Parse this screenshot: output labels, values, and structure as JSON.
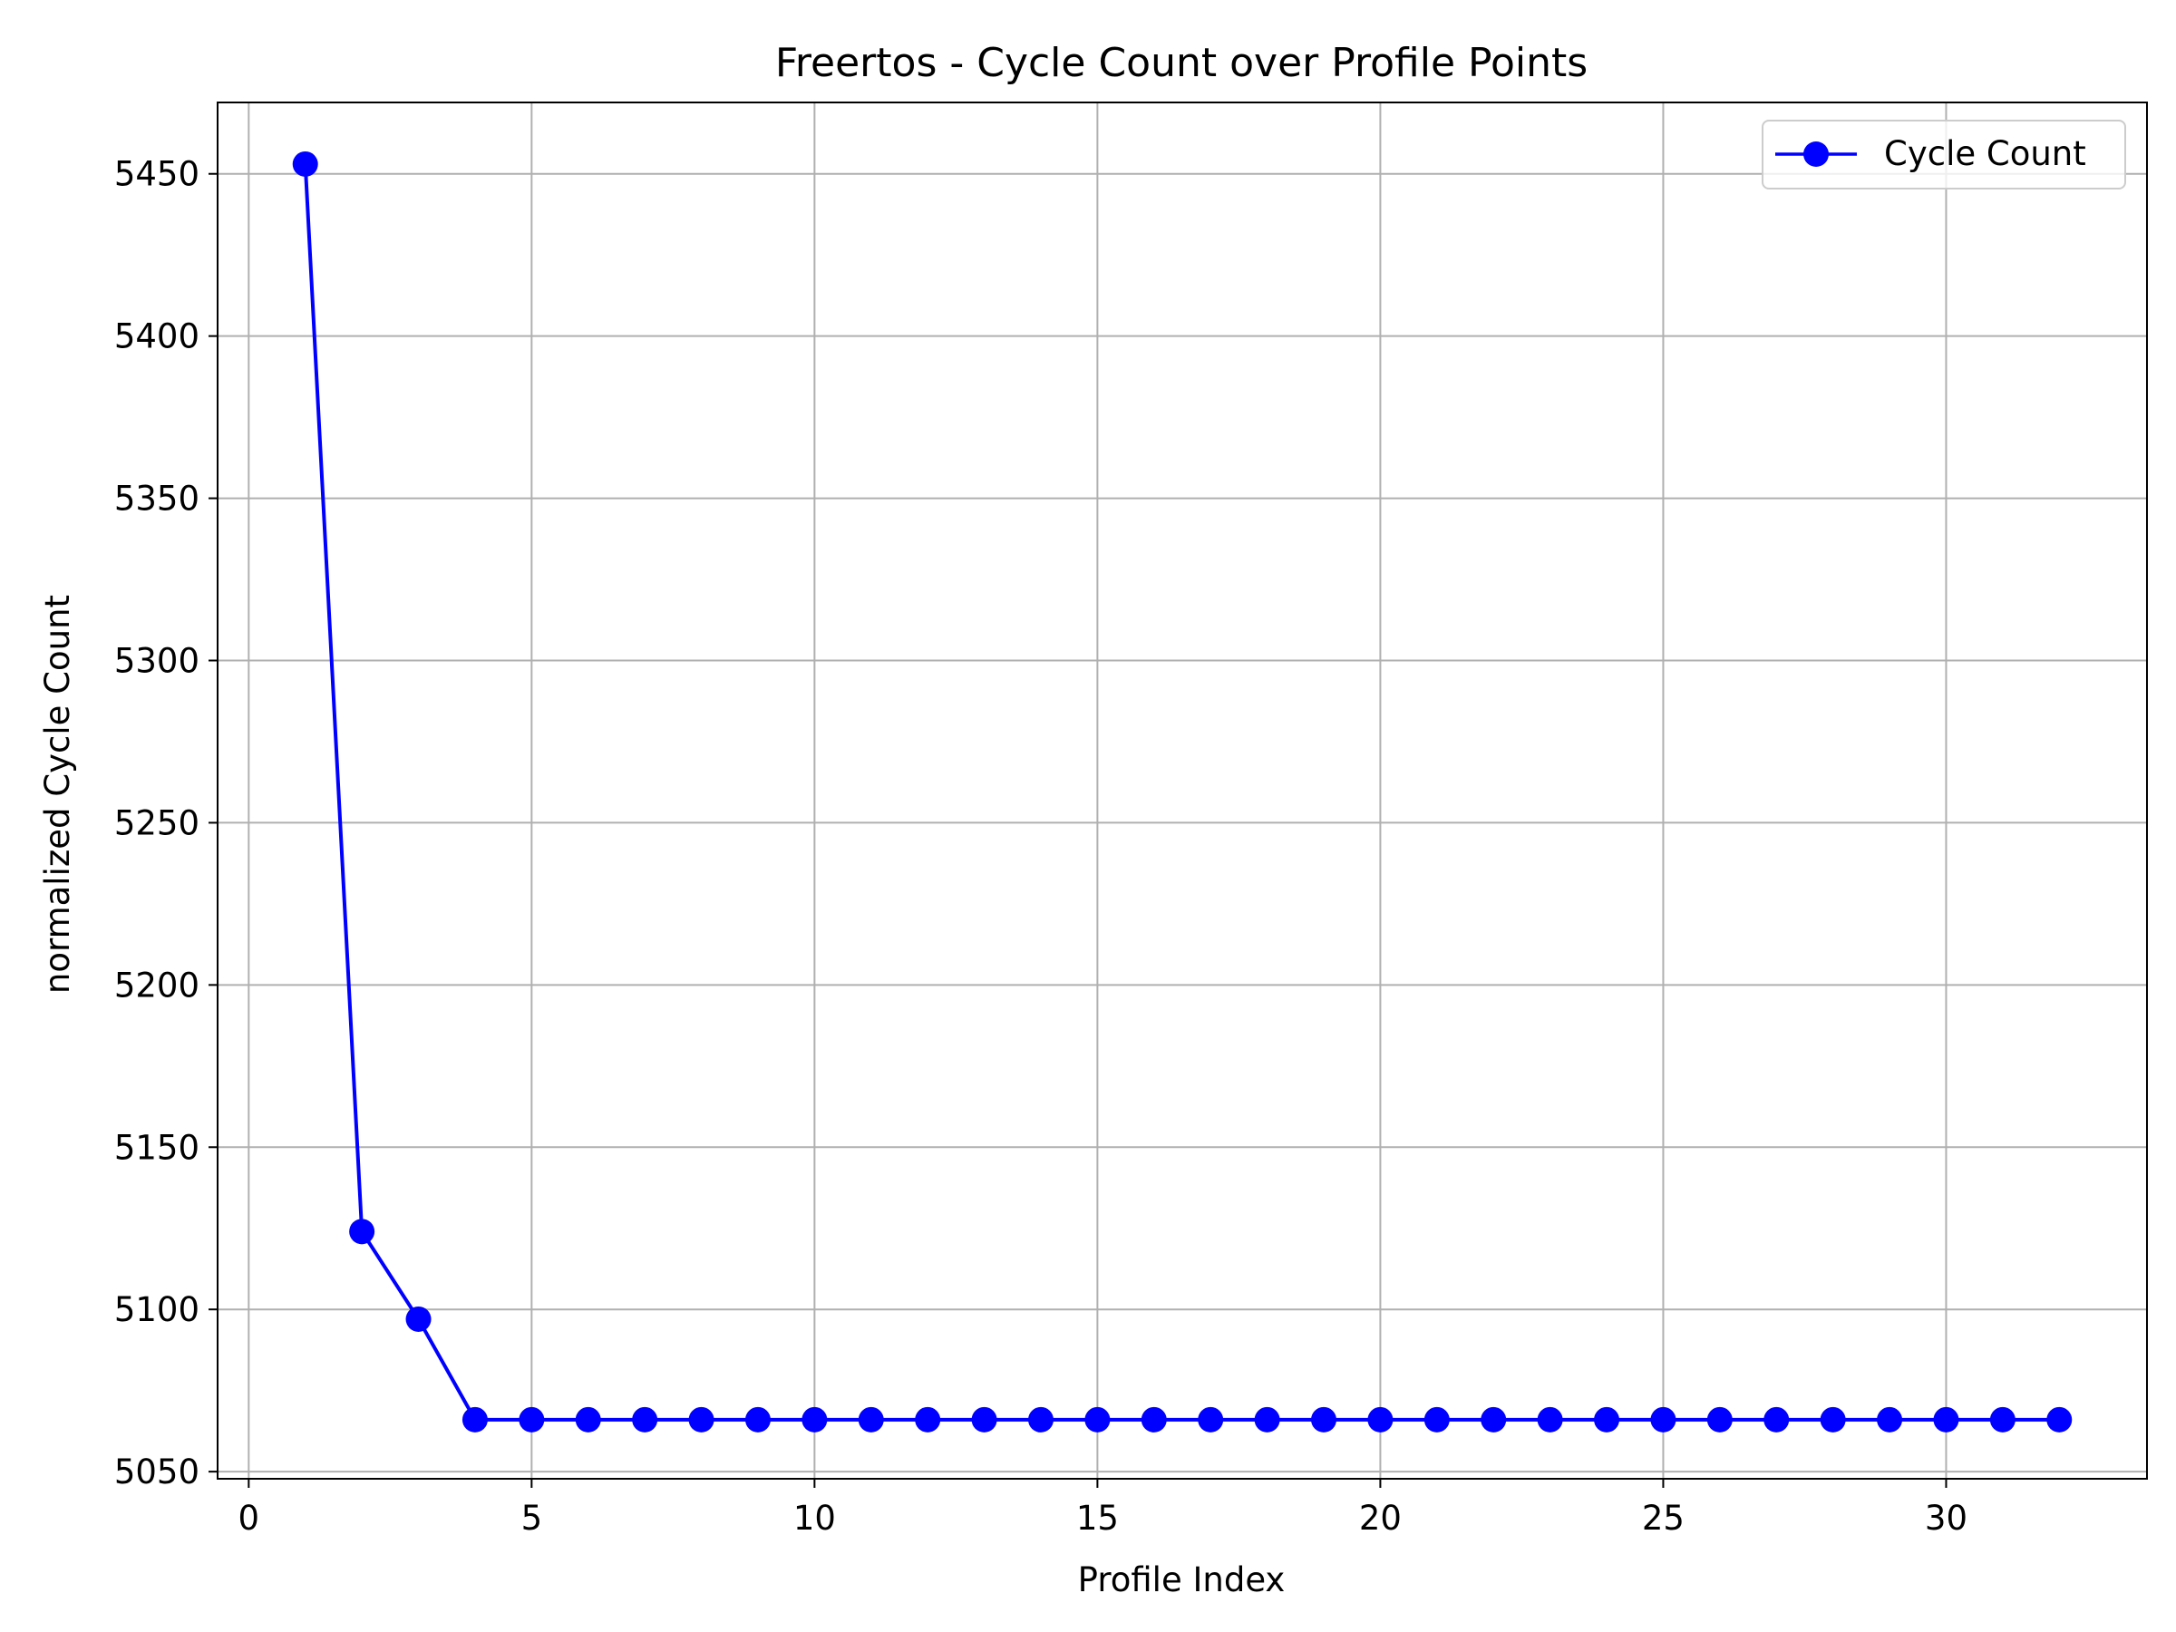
{
  "chart_data": {
    "type": "line",
    "title": "Freertos - Cycle Count over Profile Points",
    "xlabel": "Profile Index",
    "ylabel": "normalized Cycle Count",
    "xlim": [
      -0.55,
      33.55
    ],
    "ylim": [
      5047.8,
      5472
    ],
    "xticks": [
      0,
      5,
      10,
      15,
      20,
      25,
      30
    ],
    "yticks": [
      5050,
      5100,
      5150,
      5200,
      5250,
      5300,
      5350,
      5400,
      5450
    ],
    "grid": true,
    "legend_position": "top-right",
    "series": [
      {
        "name": "Cycle Count",
        "color": "#0000ff",
        "marker": "circle",
        "x": [
          1,
          2,
          3,
          4,
          5,
          6,
          7,
          8,
          9,
          10,
          11,
          12,
          13,
          14,
          15,
          16,
          17,
          18,
          19,
          20,
          21,
          22,
          23,
          24,
          25,
          26,
          27,
          28,
          29,
          30,
          31,
          32
        ],
        "y": [
          5453,
          5124,
          5097,
          5066,
          5066,
          5066,
          5066,
          5066,
          5066,
          5066,
          5066,
          5066,
          5066,
          5066,
          5066,
          5066,
          5066,
          5066,
          5066,
          5066,
          5066,
          5066,
          5066,
          5066,
          5066,
          5066,
          5066,
          5066,
          5066,
          5066,
          5066,
          5066
        ]
      }
    ]
  }
}
